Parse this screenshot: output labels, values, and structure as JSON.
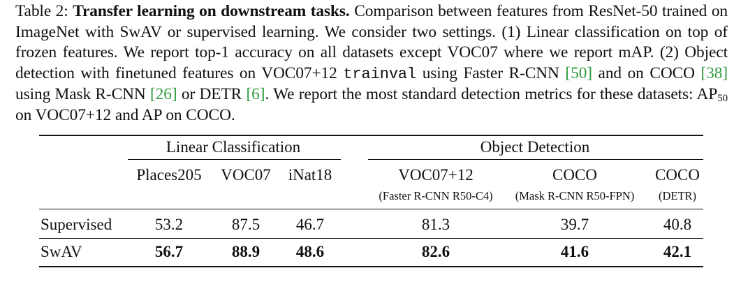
{
  "caption": {
    "label": "Table 2:",
    "title": "Transfer learning on downstream tasks.",
    "body_1": "Comparison between features from ResNet-50 trained on ImageNet with SwAV or supervised learning. We consider two settings. (1) Linear classification on top of frozen features. We report top-1 accuracy on all datasets except VOC07 where we report mAP. (2) Object detection with finetuned features on VOC07+12",
    "code": "trainval",
    "body_2": "using Faster R-CNN",
    "cite_1": "[50]",
    "body_3": "and on COCO",
    "cite_2": "[38]",
    "body_4": "using Mask R-CNN",
    "cite_3": "[26]",
    "body_5": "or DETR",
    "cite_4": "[6]",
    "body_6": ". We report the most standard detection metrics for these datasets: AP",
    "sub_50": "50",
    "body_7": "on VOC07+12 and AP on COCO."
  },
  "table": {
    "group_linear": "Linear Classification",
    "group_detection": "Object Detection",
    "columns": [
      {
        "name": "Places205",
        "note": ""
      },
      {
        "name": "VOC07",
        "note": ""
      },
      {
        "name": "iNat18",
        "note": ""
      },
      {
        "name": "VOC07+12",
        "note": "(Faster R-CNN R50-C4)"
      },
      {
        "name": "COCO",
        "note": "(Mask R-CNN R50-FPN)"
      },
      {
        "name": "COCO",
        "note": "(DETR)"
      }
    ],
    "rows": [
      {
        "method": "Supervised",
        "values": [
          "53.2",
          "87.5",
          "46.7",
          "81.3",
          "39.7",
          "40.8"
        ]
      },
      {
        "method": "SwAV",
        "values": [
          "56.7",
          "88.9",
          "48.6",
          "82.6",
          "41.6",
          "42.1"
        ]
      }
    ]
  },
  "colors": {
    "citation": "#2e9a3c",
    "text": "#111111"
  }
}
